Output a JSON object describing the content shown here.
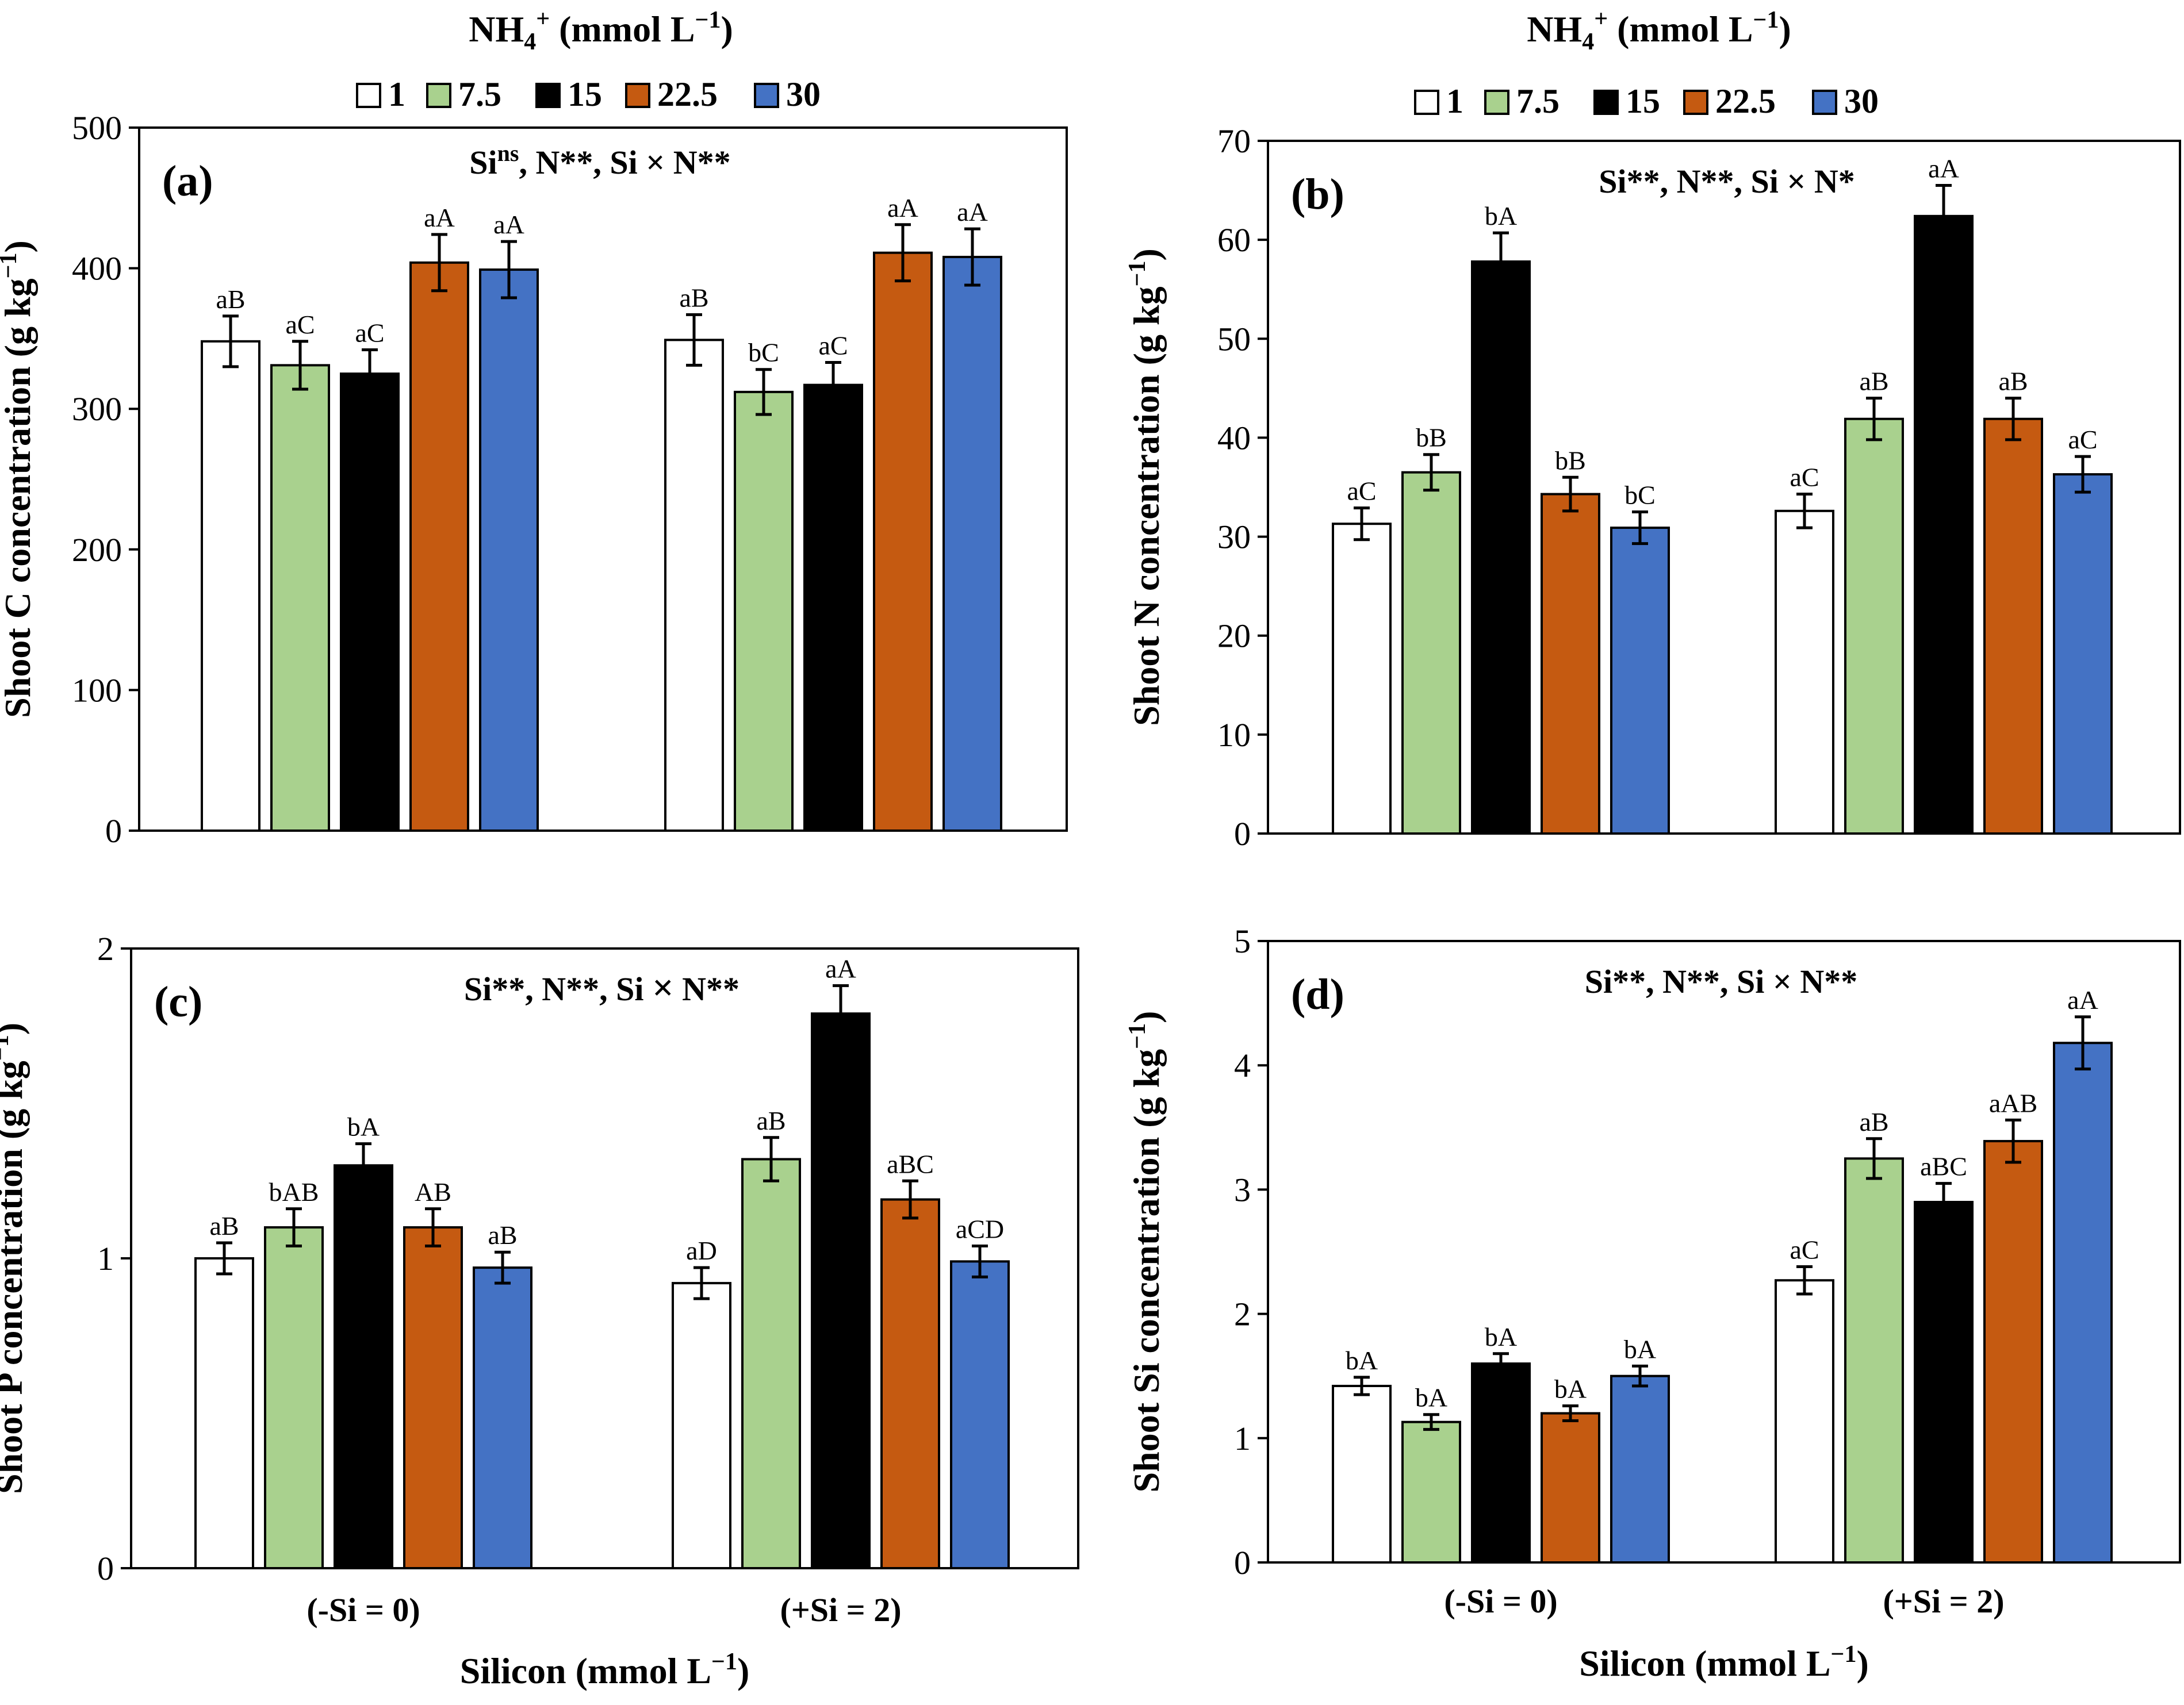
{
  "figure": {
    "legend_title": "NH4+ (mmol L-1)",
    "legend_title_display": {
      "base": "NH",
      "sub": "4",
      "sup": "+",
      "units": " (mmol L",
      "units_sup": "−1",
      "close": ")"
    },
    "legend_entries": [
      "1",
      "7.5",
      "15",
      "22.5",
      "30"
    ],
    "xlabel_display": {
      "text": "Silicon (mmol L",
      "sup": "−1",
      "close": ")"
    },
    "ylabel_units_display": {
      "text": " concentration (g kg",
      "sup": "−1",
      "close": ")"
    }
  },
  "colors": {
    "1": "#ffffff",
    "7.5": "#a9d18e",
    "15": "#000000",
    "22.5": "#c55a11",
    "30": "#4472c4"
  },
  "chart_data": [
    {
      "id": "a",
      "type": "bar",
      "panel_label": "(a)",
      "title": "Sins, N**, Si × N**",
      "title_parts": [
        {
          "t": "Si"
        },
        {
          "t": "ns",
          "sup": true
        },
        {
          "t": ", N**, Si × N**"
        }
      ],
      "categories": [
        "(-Si = 0)",
        "(+Si = 2)"
      ],
      "ylabel": "Shoot C concentration (g kg-1)",
      "ylabel_prefix": "Shoot C",
      "ylim": [
        0,
        500
      ],
      "yticks": [
        0,
        100,
        200,
        300,
        400,
        500
      ],
      "series": [
        {
          "name": "1",
          "values": [
            348,
            349
          ],
          "errors": [
            18,
            18
          ],
          "letters": [
            "aB",
            "aB"
          ]
        },
        {
          "name": "7.5",
          "values": [
            331,
            312
          ],
          "errors": [
            17,
            16
          ],
          "letters": [
            "aC",
            "bC"
          ]
        },
        {
          "name": "15",
          "values": [
            325,
            317
          ],
          "errors": [
            17,
            16
          ],
          "letters": [
            "aC",
            "aC"
          ]
        },
        {
          "name": "22.5",
          "values": [
            404,
            411
          ],
          "errors": [
            20,
            20
          ],
          "letters": [
            "aA",
            "aA"
          ]
        },
        {
          "name": "30",
          "values": [
            399,
            408
          ],
          "errors": [
            20,
            20
          ],
          "letters": [
            "aA",
            "aA"
          ]
        }
      ]
    },
    {
      "id": "b",
      "type": "bar",
      "panel_label": "(b)",
      "title": "Si**, N**, Si × N*",
      "title_parts": [
        {
          "t": "Si**, N**, Si × N*"
        }
      ],
      "categories": [
        "(-Si = 0)",
        "(+Si = 2)"
      ],
      "ylabel": "Shoot N concentration (g kg-1)",
      "ylabel_prefix": "Shoot N",
      "ylim": [
        0,
        70
      ],
      "yticks": [
        0,
        10,
        20,
        30,
        40,
        50,
        60,
        70
      ],
      "series": [
        {
          "name": "1",
          "values": [
            31.3,
            32.6
          ],
          "errors": [
            1.6,
            1.7
          ],
          "letters": [
            "aC",
            "aC"
          ]
        },
        {
          "name": "7.5",
          "values": [
            36.5,
            41.9
          ],
          "errors": [
            1.8,
            2.1
          ],
          "letters": [
            "bB",
            "aB"
          ]
        },
        {
          "name": "15",
          "values": [
            57.8,
            62.4
          ],
          "errors": [
            2.9,
            3.1
          ],
          "letters": [
            "bA",
            "aA"
          ]
        },
        {
          "name": "22.5",
          "values": [
            34.3,
            41.9
          ],
          "errors": [
            1.7,
            2.1
          ],
          "letters": [
            "bB",
            "aB"
          ]
        },
        {
          "name": "30",
          "values": [
            30.9,
            36.3
          ],
          "errors": [
            1.6,
            1.8
          ],
          "letters": [
            "bC",
            "aC"
          ]
        }
      ]
    },
    {
      "id": "c",
      "type": "bar",
      "panel_label": "(c)",
      "title": "Si**, N**, Si × N**",
      "title_parts": [
        {
          "t": "Si**, N**, Si "
        },
        {
          "t": "×",
          "heavy": true
        },
        {
          "t": " N**"
        }
      ],
      "categories": [
        "(-Si = 0)",
        "(+Si = 2)"
      ],
      "ylabel": "Shoot P concentration (g kg-1)",
      "ylabel_prefix": "Shoot P",
      "ylim": [
        0,
        2
      ],
      "yticks": [
        0,
        1,
        2
      ],
      "series": [
        {
          "name": "1",
          "values": [
            1.0,
            0.92
          ],
          "errors": [
            0.05,
            0.05
          ],
          "letters": [
            "aB",
            "aD"
          ]
        },
        {
          "name": "7.5",
          "values": [
            1.1,
            1.32
          ],
          "errors": [
            0.06,
            0.07
          ],
          "letters": [
            "bAB",
            "aB"
          ]
        },
        {
          "name": "15",
          "values": [
            1.3,
            1.79
          ],
          "errors": [
            0.07,
            0.09
          ],
          "letters": [
            "bA",
            "aA"
          ]
        },
        {
          "name": "22.5",
          "values": [
            1.1,
            1.19
          ],
          "errors": [
            0.06,
            0.06
          ],
          "letters": [
            "AB",
            "aBC"
          ]
        },
        {
          "name": "30",
          "values": [
            0.97,
            0.99
          ],
          "errors": [
            0.05,
            0.05
          ],
          "letters": [
            "aB",
            "aCD"
          ]
        }
      ],
      "xlabel": "Silicon (mmol L-1)"
    },
    {
      "id": "d",
      "type": "bar",
      "panel_label": "(d)",
      "title": "Si**, N**, Si × N**",
      "title_parts": [
        {
          "t": "Si**, N**, Si × N**"
        }
      ],
      "categories": [
        "(-Si = 0)",
        "(+Si = 2)"
      ],
      "ylabel": "Shoot Si concentration (g kg-1)",
      "ylabel_prefix": "Shoot Si",
      "ylim": [
        0,
        5
      ],
      "yticks": [
        0,
        1,
        2,
        3,
        4,
        5
      ],
      "series": [
        {
          "name": "1",
          "values": [
            1.42,
            2.27
          ],
          "errors": [
            0.07,
            0.11
          ],
          "letters": [
            "bA",
            "aC"
          ]
        },
        {
          "name": "7.5",
          "values": [
            1.13,
            3.25
          ],
          "errors": [
            0.06,
            0.16
          ],
          "letters": [
            "bA",
            "aB"
          ]
        },
        {
          "name": "15",
          "values": [
            1.6,
            2.9
          ],
          "errors": [
            0.08,
            0.15
          ],
          "letters": [
            "bA",
            "aBC"
          ]
        },
        {
          "name": "22.5",
          "values": [
            1.2,
            3.39
          ],
          "errors": [
            0.06,
            0.17
          ],
          "letters": [
            "bA",
            "aAB"
          ]
        },
        {
          "name": "30",
          "values": [
            1.5,
            4.18
          ],
          "errors": [
            0.08,
            0.21
          ],
          "letters": [
            "bA",
            "aA"
          ]
        }
      ],
      "xlabel": "Silicon (mmol L-1)"
    }
  ]
}
